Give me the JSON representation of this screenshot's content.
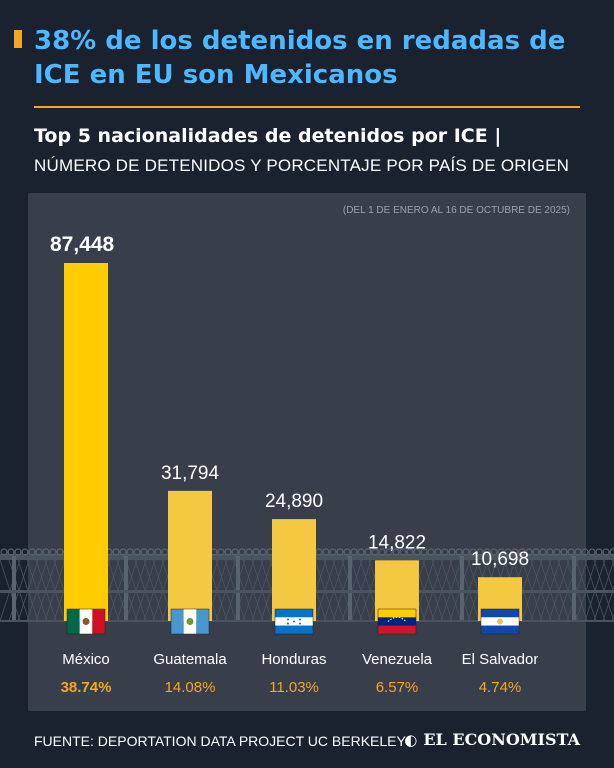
{
  "header": {
    "headline": "38% de los detenidos en redadas de ICE en EU son Mexicanos",
    "subtitle_bold": "Top 5 nacionalidades de detenidos por ICE |",
    "subtitle_caps": "NÚMERO DE DETENIDOS Y PORCENTAJE POR PAÍS DE ORIGEN",
    "date_note": "(DEL 1 DE ENERO AL 16 DE OCTUBRE DE 2025)"
  },
  "footer": {
    "source": "FUENTE: DEPORTATION DATA PROJECT UC BERKELEY",
    "brand": "EL ECONOMISTA",
    "brand_icon": "el-economista-logo-icon"
  },
  "colors": {
    "background": "#1a2230",
    "panel": "#383f4a",
    "headline": "#4db8ff",
    "accent": "#f5a623",
    "bar_highlight": "#ffcc00",
    "bar": "#f5c842",
    "percent": "#f5a623"
  },
  "chart_data": {
    "type": "bar",
    "categories": [
      "México",
      "Guatemala",
      "Honduras",
      "Venezuela",
      "El Salvador"
    ],
    "values": [
      87448,
      31794,
      24890,
      14822,
      10698
    ],
    "value_labels": [
      "87,448",
      "31,794",
      "24,890",
      "14,822",
      "10,698"
    ],
    "percent_labels": [
      "38.74%",
      "14.08%",
      "11.03%",
      "6.57%",
      "4.74%"
    ],
    "flags": [
      "mexico-flag-icon",
      "guatemala-flag-icon",
      "honduras-flag-icon",
      "venezuela-flag-icon",
      "el-salvador-flag-icon"
    ],
    "highlight_index": 0,
    "ylim": [
      0,
      87448
    ],
    "grid": false,
    "legend": "none"
  }
}
